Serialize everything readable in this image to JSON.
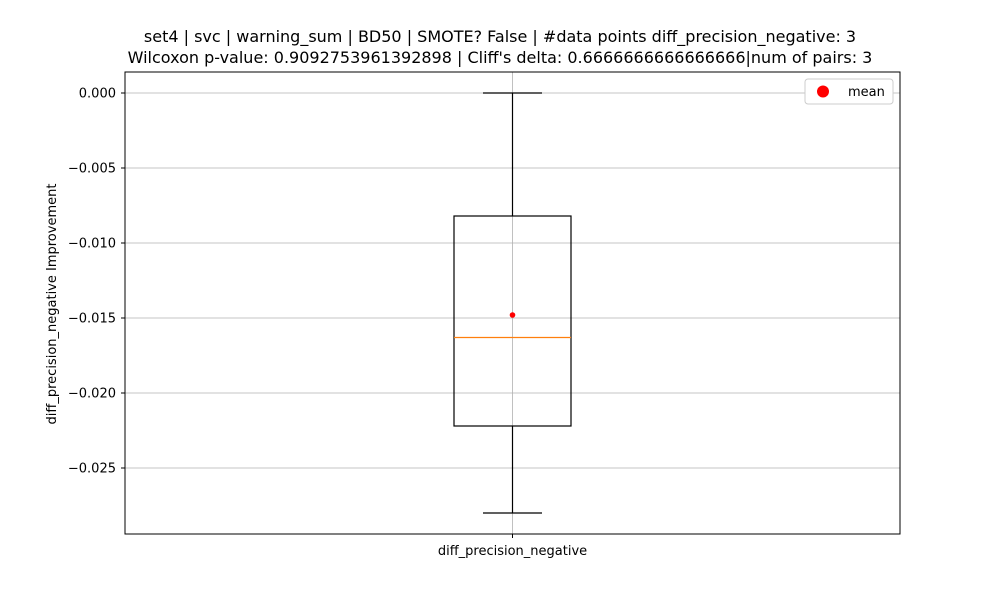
{
  "chart_data": {
    "type": "boxplot",
    "title_lines": [
      "set4 | svc | warning_sum | BD50 | SMOTE? False | #data points diff_precision_negative: 3",
      "Wilcoxon p-value: 0.9092753961392898 | Cliff's delta: 0.6666666666666666|num of pairs: 3"
    ],
    "ylabel": "diff_precision_negative Improvement",
    "categories": [
      "diff_precision_negative"
    ],
    "boxes": [
      {
        "category": "diff_precision_negative",
        "whisker_low": -0.028,
        "q1": -0.0222,
        "median": -0.0163,
        "q3": -0.0082,
        "whisker_high": 0.0,
        "mean": -0.0148
      }
    ],
    "ylim": [
      -0.0294,
      0.0014
    ],
    "yticks": [
      0.0,
      -0.005,
      -0.01,
      -0.015,
      -0.02,
      -0.025
    ],
    "ytick_labels": [
      "0.000",
      "−0.005",
      "−0.010",
      "−0.015",
      "−0.020",
      "−0.025"
    ],
    "grid": true,
    "legend": {
      "position": "top-right",
      "entries": [
        {
          "label": "mean",
          "color": "#ff0000",
          "marker": "circle"
        }
      ]
    },
    "colors": {
      "box": "#000000",
      "median": "#ff7f0e",
      "mean": "#ff0000",
      "grid": "#b0b0b0"
    }
  }
}
